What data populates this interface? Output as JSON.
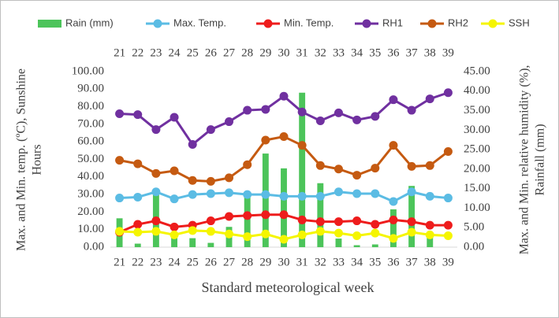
{
  "chart_data": {
    "type": "combo",
    "categories": [
      "21",
      "22",
      "23",
      "24",
      "25",
      "26",
      "27",
      "28",
      "29",
      "30",
      "31",
      "32",
      "33",
      "34",
      "35",
      "36",
      "37",
      "38",
      "39"
    ],
    "xlabel": "Standard meteorological week",
    "ylabel": [
      "Max. and Min. temp. (ºC), Sunshine",
      "Hours"
    ],
    "y2label": [
      "Max. and Min. relative humidity (%),",
      "Rainfall (mm)"
    ],
    "ylim": [
      0,
      100
    ],
    "yticks": [
      {
        "value": 0,
        "label": "0.00"
      },
      {
        "value": 10,
        "label": "10.00"
      },
      {
        "value": 20,
        "label": "20.00"
      },
      {
        "value": 30,
        "label": "30.00"
      },
      {
        "value": 40,
        "label": "40.00"
      },
      {
        "value": 50,
        "label": "50.00"
      },
      {
        "value": 60,
        "label": "60.00"
      },
      {
        "value": 70,
        "label": "70.00"
      },
      {
        "value": 80,
        "label": "80.00"
      },
      {
        "value": 90,
        "label": "90.00"
      },
      {
        "value": 100,
        "label": "100.00"
      }
    ],
    "y2lim": [
      0,
      45
    ],
    "y2ticks": [
      {
        "value": 0,
        "label": "0.00"
      },
      {
        "value": 5,
        "label": "5.00"
      },
      {
        "value": 10,
        "label": "10.00"
      },
      {
        "value": 15,
        "label": "15.00"
      },
      {
        "value": 20,
        "label": "20.00"
      },
      {
        "value": 25,
        "label": "25.00"
      },
      {
        "value": 30,
        "label": "30.00"
      },
      {
        "value": 35,
        "label": "35.00"
      },
      {
        "value": 40,
        "label": "40.00"
      },
      {
        "value": 45,
        "label": "45.00"
      }
    ],
    "series": [
      {
        "name": "Rain (mm)",
        "type": "bar",
        "axis": "y2",
        "color": "#4cc45a",
        "values": [
          7.4,
          0.9,
          14,
          3.2,
          2.3,
          1.1,
          5.2,
          13,
          24,
          20.2,
          39.6,
          16.4,
          2.2,
          0.5,
          0.7,
          9.7,
          15.7,
          3.2,
          0
        ]
      },
      {
        "name": "Max. Temp.",
        "type": "line",
        "color": "#5bbce4",
        "values": [
          28,
          28.5,
          31.5,
          27.5,
          30,
          30.5,
          31,
          30,
          30,
          29,
          29,
          29,
          31.5,
          30.5,
          30.5,
          26,
          31.5,
          29,
          28
        ]
      },
      {
        "name": "Min. Temp.",
        "type": "line",
        "color": "#ee1c1c",
        "values": [
          8.5,
          13,
          15,
          11.5,
          12.5,
          15,
          17.5,
          18,
          18.5,
          18.5,
          15.5,
          14.5,
          14.5,
          15,
          13,
          15.5,
          14.5,
          12.5,
          12.5
        ]
      },
      {
        "name": "RH1",
        "type": "line",
        "color": "#7030a0",
        "values": [
          76,
          75.5,
          67,
          74,
          58.5,
          67,
          71.5,
          78,
          78.5,
          86,
          77,
          72,
          76.5,
          72.5,
          74.5,
          84,
          78,
          84.5,
          88
        ]
      },
      {
        "name": "RH2",
        "type": "line",
        "color": "#c55a11",
        "values": [
          49.5,
          47.5,
          42,
          43.5,
          38,
          37.5,
          39.5,
          47,
          61,
          63,
          58,
          46.5,
          44.5,
          41,
          45,
          58,
          46,
          46.5,
          54.5
        ]
      },
      {
        "name": "SSH",
        "type": "line",
        "color": "#f5f500",
        "values": [
          9,
          8.5,
          9,
          7,
          9.5,
          9,
          7.5,
          6,
          7.5,
          4.5,
          7,
          9,
          8,
          6.5,
          8,
          5,
          8.5,
          7,
          6.5
        ]
      }
    ]
  }
}
